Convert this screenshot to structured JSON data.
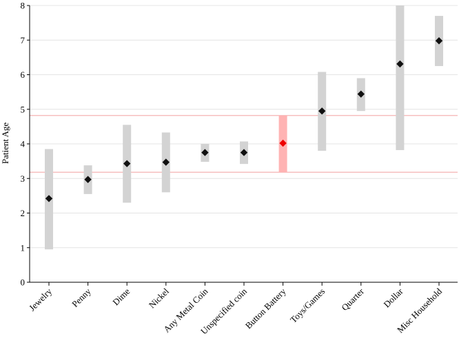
{
  "chart_data": {
    "type": "scatter",
    "title": "",
    "xlabel": "",
    "ylabel": "Patient Age",
    "ylim": [
      0,
      8
    ],
    "yticks": [
      "0",
      "1",
      "2",
      "3",
      "4",
      "5",
      "6",
      "7",
      "8"
    ],
    "grid": true,
    "reference_lines": [
      3.18,
      4.82
    ],
    "highlight_category": "Button Battery",
    "colors": {
      "range_bar": "#d3d3d3",
      "highlight_bar": "#ffb3b3",
      "marker": "#111111",
      "highlight_marker": "#ee0000",
      "reference_line": "#f4aaaa",
      "grid": "#e4e4e4"
    },
    "categories": [
      "Jewelry",
      "Penny",
      "Dime",
      "Nickel",
      "Any Metal Coin",
      "Unspecified coin",
      "Button Battery",
      "Toys/Games",
      "Quarter",
      "Dollar",
      "Misc Household"
    ],
    "values": [
      2.42,
      2.97,
      3.43,
      3.47,
      3.75,
      3.75,
      4.02,
      4.95,
      5.44,
      6.31,
      6.98
    ],
    "lower": [
      0.95,
      2.55,
      2.3,
      2.6,
      3.48,
      3.42,
      3.18,
      3.8,
      4.95,
      3.82,
      6.25
    ],
    "upper": [
      3.85,
      3.38,
      4.55,
      4.33,
      4.0,
      4.07,
      4.82,
      6.08,
      5.9,
      8.0,
      7.7
    ]
  }
}
